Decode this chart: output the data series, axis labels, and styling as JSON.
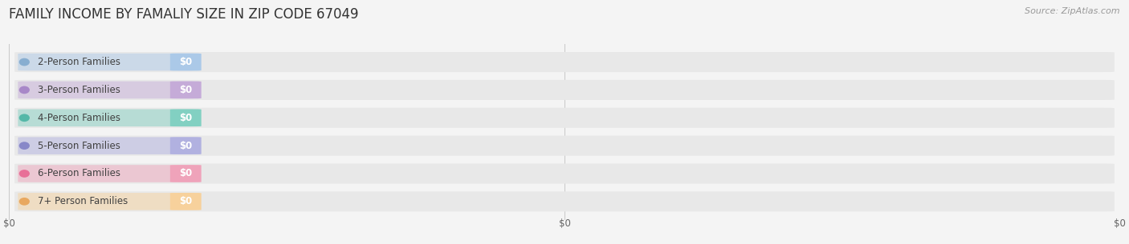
{
  "title": "FAMILY INCOME BY FAMALIY SIZE IN ZIP CODE 67049",
  "source": "Source: ZipAtlas.com",
  "categories": [
    "2-Person Families",
    "3-Person Families",
    "4-Person Families",
    "5-Person Families",
    "6-Person Families",
    "7+ Person Families"
  ],
  "values": [
    0,
    0,
    0,
    0,
    0,
    0
  ],
  "bar_colors": [
    "#a8c8e8",
    "#c4a8d8",
    "#7dcfc0",
    "#aeaee0",
    "#f0a0b8",
    "#f8d098"
  ],
  "circle_colors": [
    "#88aed0",
    "#a888c8",
    "#55b8a8",
    "#8888c8",
    "#e87098",
    "#e8a860"
  ],
  "value_labels": [
    "$0",
    "$0",
    "$0",
    "$0",
    "$0",
    "$0"
  ],
  "x_tick_labels": [
    "$0",
    "$0",
    "$0"
  ],
  "x_tick_positions": [
    0.0,
    0.5,
    1.0
  ],
  "background_color": "#f4f4f4",
  "bar_bg_color": "#e8e8e8",
  "title_fontsize": 12,
  "label_fontsize": 8.5,
  "source_fontsize": 8,
  "value_fontsize": 8.5,
  "tick_fontsize": 8.5
}
